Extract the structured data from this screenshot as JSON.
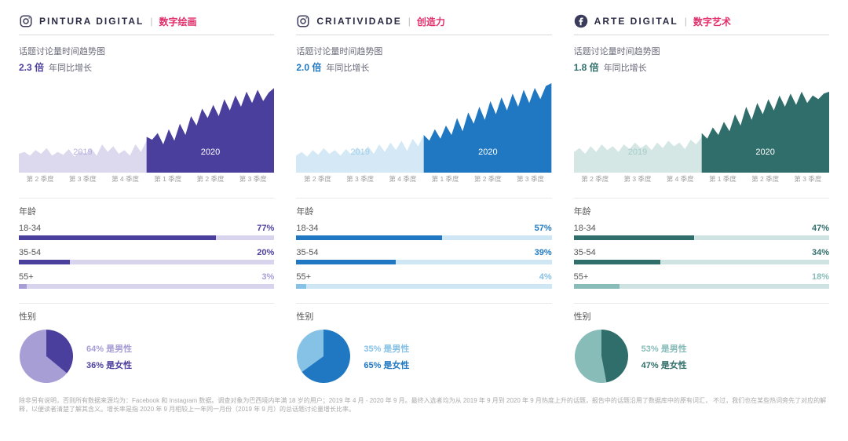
{
  "footnote": "除非另有说明，否则所有数据来源均为：Facebook 和 Instagram 数据。调查对象为巴西境内年满 18 岁的用户；2019 年 4 月 - 2020 年 9 月。最终入选者均为从 2019 年 9 月到 2020 年 9 月热度上升的话题，报告中的话题沿用了数据库中的原有词汇，\n不过，我们也在某些热词旁先了对应的解释，以便读者清楚了解其含义。增长率是指 2020 年 9 月相较上一年同一月份（2019 年 9 月）的总话题讨论量增长比率。",
  "subtitle_label": "话题讨论量时间趋势图",
  "growth_suffix": "年同比增长",
  "age_section_label": "年龄",
  "gender_section_label": "性别",
  "year_2019": "2019",
  "year_2020": "2020",
  "xaxis_ticks": [
    "第 2 季度",
    "第 3 季度",
    "第 4 季度",
    "第 1 季度",
    "第 2 季度",
    "第 3 季度"
  ],
  "male_suffix": "是男性",
  "female_suffix": "是女性",
  "panels": [
    {
      "platform": "instagram",
      "title_en": "PINTURA DIGITAL",
      "title_zh": "数字绘画",
      "accent": "#e1306c",
      "growth_val": "2.3 倍",
      "colors": {
        "primary": "#4b3f9e",
        "primary_light": "#a79ed6",
        "track_light": "#d8d4ed",
        "chart_light_fill": "#dcd8ee",
        "year_2019_label": "#b7afde"
      },
      "chart_2019": [
        20,
        22,
        18,
        24,
        20,
        26,
        18,
        22,
        19,
        25,
        17,
        23,
        20,
        26,
        18,
        30,
        22,
        28,
        20,
        24,
        18,
        30,
        22,
        34
      ],
      "chart_2020": [
        38,
        35,
        42,
        30,
        46,
        34,
        52,
        40,
        60,
        50,
        68,
        58,
        72,
        60,
        78,
        66,
        82,
        70,
        86,
        74,
        88,
        76,
        85,
        90
      ],
      "age_bars": [
        {
          "label": "18-34",
          "pct": 77,
          "color": "#4b3f9e",
          "pct_txt": "77%"
        },
        {
          "label": "35-54",
          "pct": 20,
          "color": "#4b3f9e",
          "pct_txt": "20%"
        },
        {
          "label": "55+",
          "pct": 3,
          "color": "#a79ed6",
          "pct_txt": "3%"
        }
      ],
      "gender": {
        "male": 64,
        "female": 36,
        "male_txt": "64%",
        "female_txt": "36%",
        "male_color": "#a79ed6",
        "female_color": "#4b3f9e"
      }
    },
    {
      "platform": "instagram",
      "title_en": "CRIATIVIDADE",
      "title_zh": "创造力",
      "accent": "#e1306c",
      "growth_val": "2.0 倍",
      "colors": {
        "primary": "#1f78c1",
        "primary_light": "#86c1e6",
        "track_light": "#cfe6f4",
        "chart_light_fill": "#d4e9f5",
        "year_2019_label": "#9fcfe9"
      },
      "chart_2019": [
        18,
        22,
        17,
        24,
        19,
        26,
        20,
        24,
        18,
        25,
        19,
        27,
        21,
        28,
        20,
        30,
        22,
        32,
        24,
        34,
        23,
        36,
        28,
        40
      ],
      "chart_2020": [
        40,
        34,
        46,
        36,
        50,
        40,
        58,
        44,
        64,
        52,
        70,
        56,
        76,
        62,
        80,
        66,
        84,
        70,
        88,
        74,
        90,
        78,
        92,
        95
      ],
      "age_bars": [
        {
          "label": "18-34",
          "pct": 57,
          "color": "#1f78c1",
          "pct_txt": "57%"
        },
        {
          "label": "35-54",
          "pct": 39,
          "color": "#1f78c1",
          "pct_txt": "39%"
        },
        {
          "label": "55+",
          "pct": 4,
          "color": "#86c1e6",
          "pct_txt": "4%"
        }
      ],
      "gender": {
        "male": 35,
        "female": 65,
        "male_txt": "35%",
        "female_txt": "65%",
        "male_color": "#86c1e6",
        "female_color": "#1f78c1"
      }
    },
    {
      "platform": "facebook",
      "title_en": "ARTE DIGITAL",
      "title_zh": "数字艺术",
      "accent": "#e1306c",
      "growth_val": "1.8 倍",
      "colors": {
        "primary": "#2f6e6a",
        "primary_light": "#88bcb8",
        "track_light": "#cfe4e2",
        "chart_light_fill": "#d5e7e5",
        "year_2019_label": "#a3cbc8"
      },
      "chart_2019": [
        22,
        26,
        20,
        28,
        22,
        30,
        24,
        28,
        22,
        30,
        25,
        32,
        26,
        30,
        24,
        32,
        26,
        34,
        28,
        32,
        25,
        35,
        30,
        38
      ],
      "chart_2020": [
        42,
        36,
        48,
        40,
        54,
        44,
        62,
        50,
        70,
        56,
        74,
        62,
        78,
        66,
        82,
        70,
        84,
        72,
        86,
        74,
        82,
        78,
        84,
        86
      ],
      "age_bars": [
        {
          "label": "18-34",
          "pct": 47,
          "color": "#2f6e6a",
          "pct_txt": "47%"
        },
        {
          "label": "35-54",
          "pct": 34,
          "color": "#2f6e6a",
          "pct_txt": "34%"
        },
        {
          "label": "55+",
          "pct": 18,
          "color": "#88bcb8",
          "pct_txt": "18%"
        }
      ],
      "gender": {
        "male": 53,
        "female": 47,
        "male_txt": "53%",
        "female_txt": "47%",
        "male_color": "#88bcb8",
        "female_color": "#2f6e6a"
      }
    }
  ]
}
